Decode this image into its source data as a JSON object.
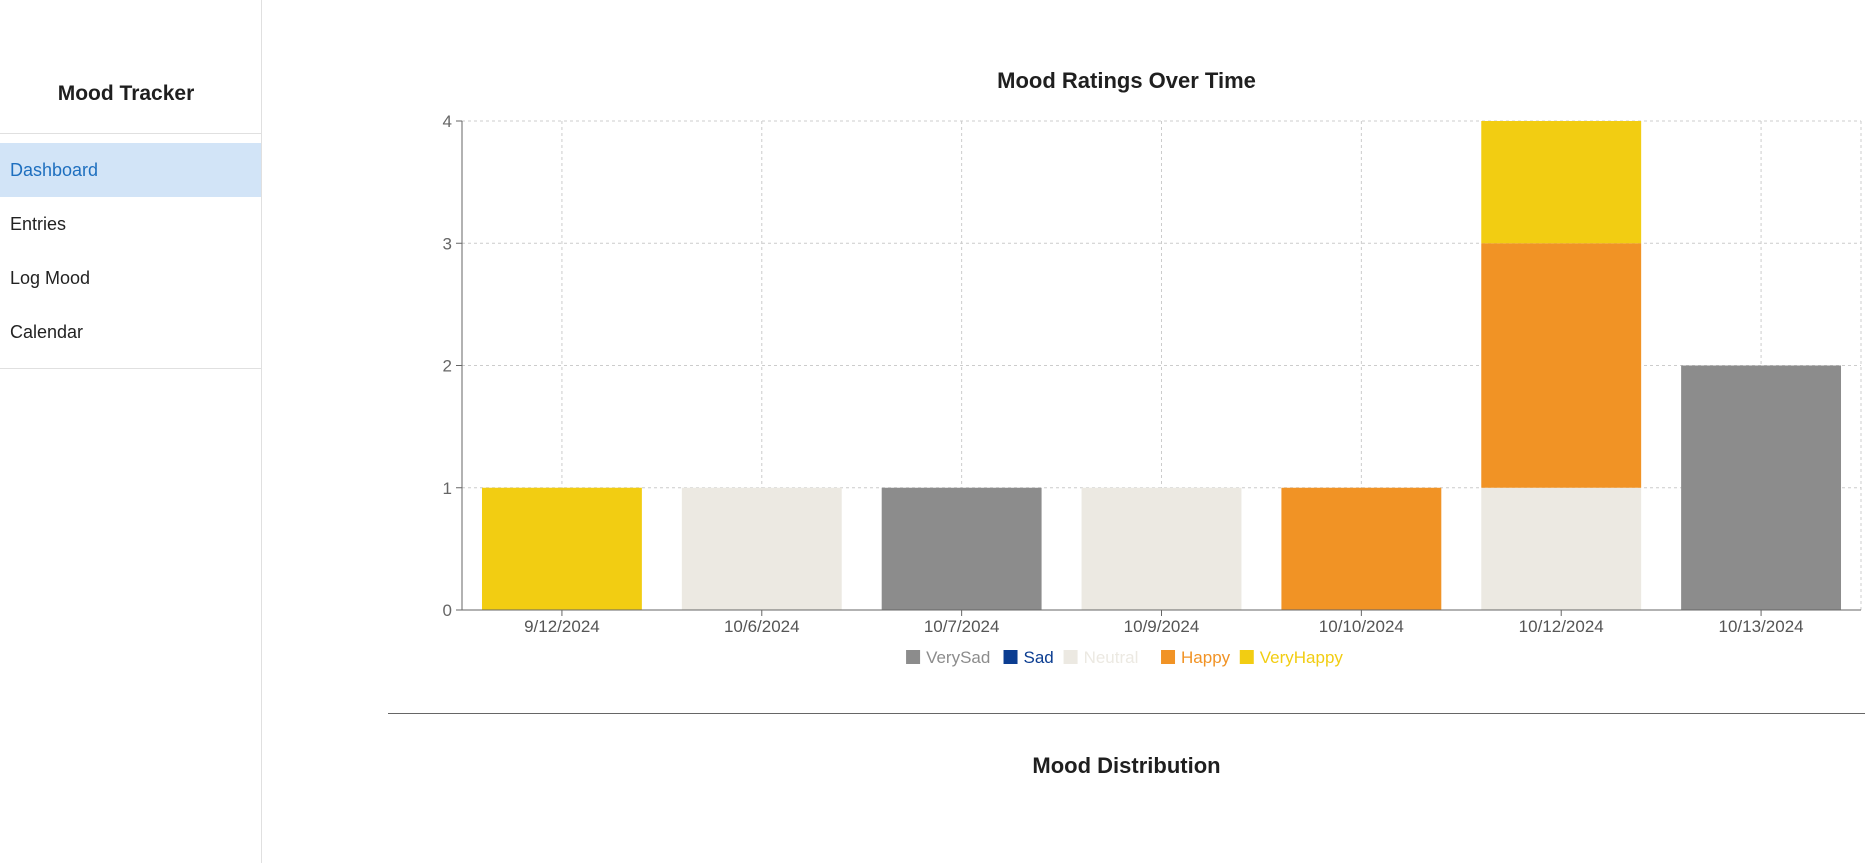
{
  "sidebar": {
    "title": "Mood Tracker",
    "items": [
      {
        "label": "Dashboard",
        "active": true
      },
      {
        "label": "Entries",
        "active": false
      },
      {
        "label": "Log Mood",
        "active": false
      },
      {
        "label": "Calendar",
        "active": false
      }
    ]
  },
  "main": {
    "chart_title": "Mood Ratings Over Time",
    "second_section_title": "Mood Distribution"
  },
  "colors": {
    "VerySad": "#8c8c8c",
    "Sad": "#0b3d91",
    "Neutral": "#ece9e2",
    "Happy": "#f19325",
    "VeryHappy": "#f2cd12",
    "accent": "#1e6fbf",
    "active_bg": "#d2e4f7"
  },
  "chart_data": {
    "type": "bar",
    "stacked": true,
    "title": "Mood Ratings Over Time",
    "categories": [
      "9/12/2024",
      "10/6/2024",
      "10/7/2024",
      "10/9/2024",
      "10/10/2024",
      "10/12/2024",
      "10/13/2024"
    ],
    "series": [
      {
        "name": "VerySad",
        "values": [
          0,
          0,
          1,
          0,
          0,
          0,
          2
        ]
      },
      {
        "name": "Sad",
        "values": [
          0,
          0,
          0,
          0,
          0,
          0,
          0
        ]
      },
      {
        "name": "Neutral",
        "values": [
          0,
          1,
          0,
          1,
          0,
          1,
          0
        ]
      },
      {
        "name": "Happy",
        "values": [
          0,
          0,
          0,
          0,
          1,
          2,
          0
        ]
      },
      {
        "name": "VeryHappy",
        "values": [
          1,
          0,
          0,
          0,
          0,
          1,
          0
        ]
      }
    ],
    "ylim": [
      0,
      4
    ],
    "yticks": [
      0,
      1,
      2,
      3,
      4
    ],
    "grid": true,
    "legend": "bottom"
  }
}
